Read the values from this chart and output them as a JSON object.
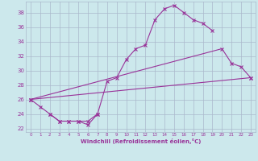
{
  "xlabel": "Windchill (Refroidissement éolien,°C)",
  "xlim": [
    -0.5,
    23.5
  ],
  "ylim": [
    21.5,
    39.5
  ],
  "yticks": [
    22,
    24,
    26,
    28,
    30,
    32,
    34,
    36,
    38
  ],
  "xticks": [
    0,
    1,
    2,
    3,
    4,
    5,
    6,
    7,
    8,
    9,
    10,
    11,
    12,
    13,
    14,
    15,
    16,
    17,
    18,
    19,
    20,
    21,
    22,
    23
  ],
  "bg_color": "#cce8ec",
  "grid_color": "#aab8cc",
  "line_color": "#993399",
  "series": [
    {
      "x": [
        0,
        1,
        2,
        3,
        4,
        5,
        6,
        7,
        8,
        9,
        10,
        11,
        12,
        13,
        14,
        15,
        16,
        17,
        18,
        19
      ],
      "y": [
        26,
        25,
        24,
        23,
        23,
        23,
        22.5,
        24,
        28.5,
        29,
        31.5,
        33,
        33.5,
        37,
        38.5,
        39,
        38,
        37,
        36.5,
        35.5
      ]
    },
    {
      "x": [
        0,
        23
      ],
      "y": [
        26,
        29
      ]
    },
    {
      "x": [
        0,
        20,
        21,
        22,
        23
      ],
      "y": [
        26,
        33,
        31,
        30.5,
        29
      ]
    },
    {
      "x": [
        2,
        3,
        4,
        5,
        6,
        7
      ],
      "y": [
        24,
        23,
        23,
        23,
        23,
        24
      ]
    }
  ]
}
